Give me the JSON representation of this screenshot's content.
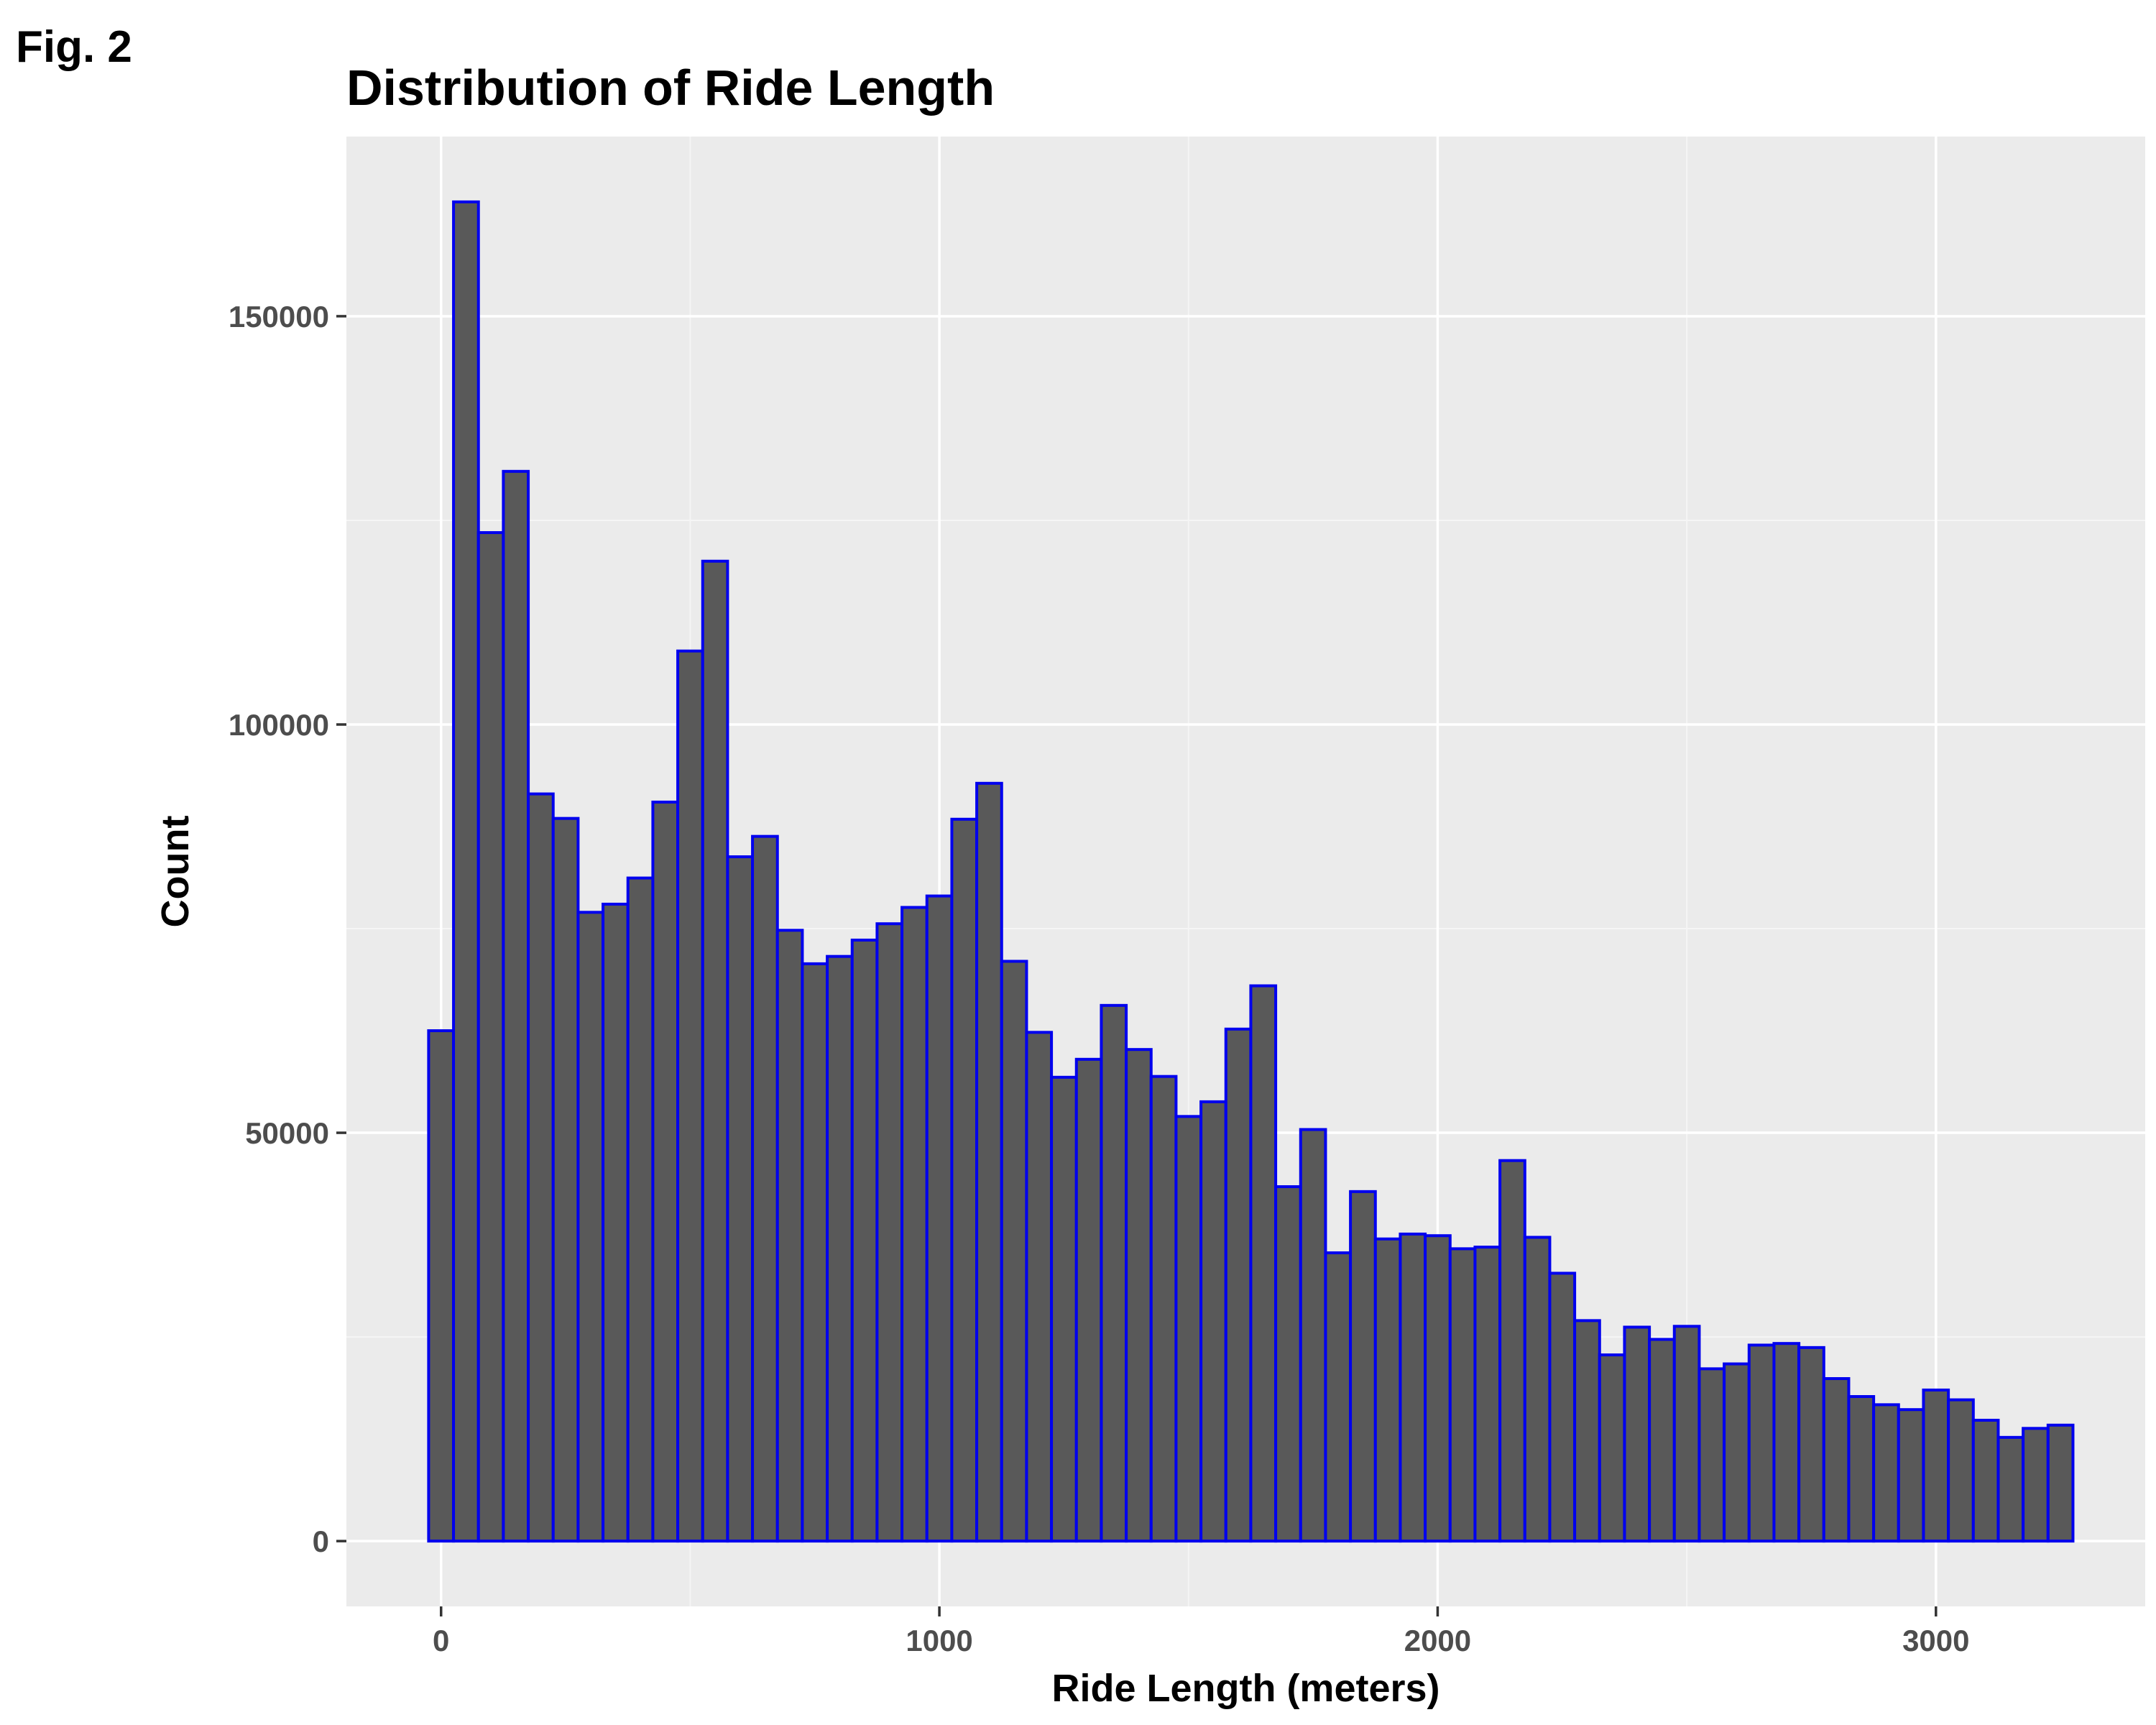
{
  "figure": {
    "label": "Fig. 2"
  },
  "chart_data": {
    "type": "bar",
    "title": "Distribution of Ride Length",
    "xlabel": "Ride Length (meters)",
    "ylabel": "Count",
    "bin_width": 50,
    "first_bin_start": -25,
    "xlim": [
      -190,
      3420
    ],
    "ylim": [
      -8000,
      172000
    ],
    "x_ticks": [
      0,
      1000,
      2000,
      3000
    ],
    "x_tick_labels": [
      "0",
      "1000",
      "2000",
      "3000"
    ],
    "y_ticks": [
      0,
      50000,
      100000,
      150000
    ],
    "y_tick_labels": [
      "0",
      "50000",
      "100000",
      "150000"
    ],
    "grid": true,
    "legend": "none",
    "values": [
      62500,
      164000,
      123500,
      131000,
      91500,
      88500,
      77000,
      78000,
      81200,
      90500,
      109000,
      120000,
      83800,
      86300,
      74800,
      70700,
      71600,
      73600,
      75600,
      77600,
      79000,
      88400,
      92800,
      71000,
      62300,
      56800,
      59000,
      65600,
      60200,
      56900,
      52000,
      53800,
      62700,
      68000,
      43400,
      50400,
      35300,
      42800,
      37000,
      37600,
      37400,
      35800,
      36000,
      46600,
      37200,
      32800,
      27000,
      22800,
      26200,
      24700,
      26300,
      21100,
      21700,
      24000,
      24200,
      23700,
      19900,
      17700,
      16700,
      16100,
      18500,
      17300,
      14800,
      12700,
      13800,
      14200
    ],
    "colors": {
      "bar_fill": "#595959",
      "bar_stroke": "#0000ee",
      "panel_bg": "#ebebeb",
      "grid_major": "#ffffff",
      "grid_minor": "#f5f5f5",
      "tick": "#333333"
    }
  }
}
